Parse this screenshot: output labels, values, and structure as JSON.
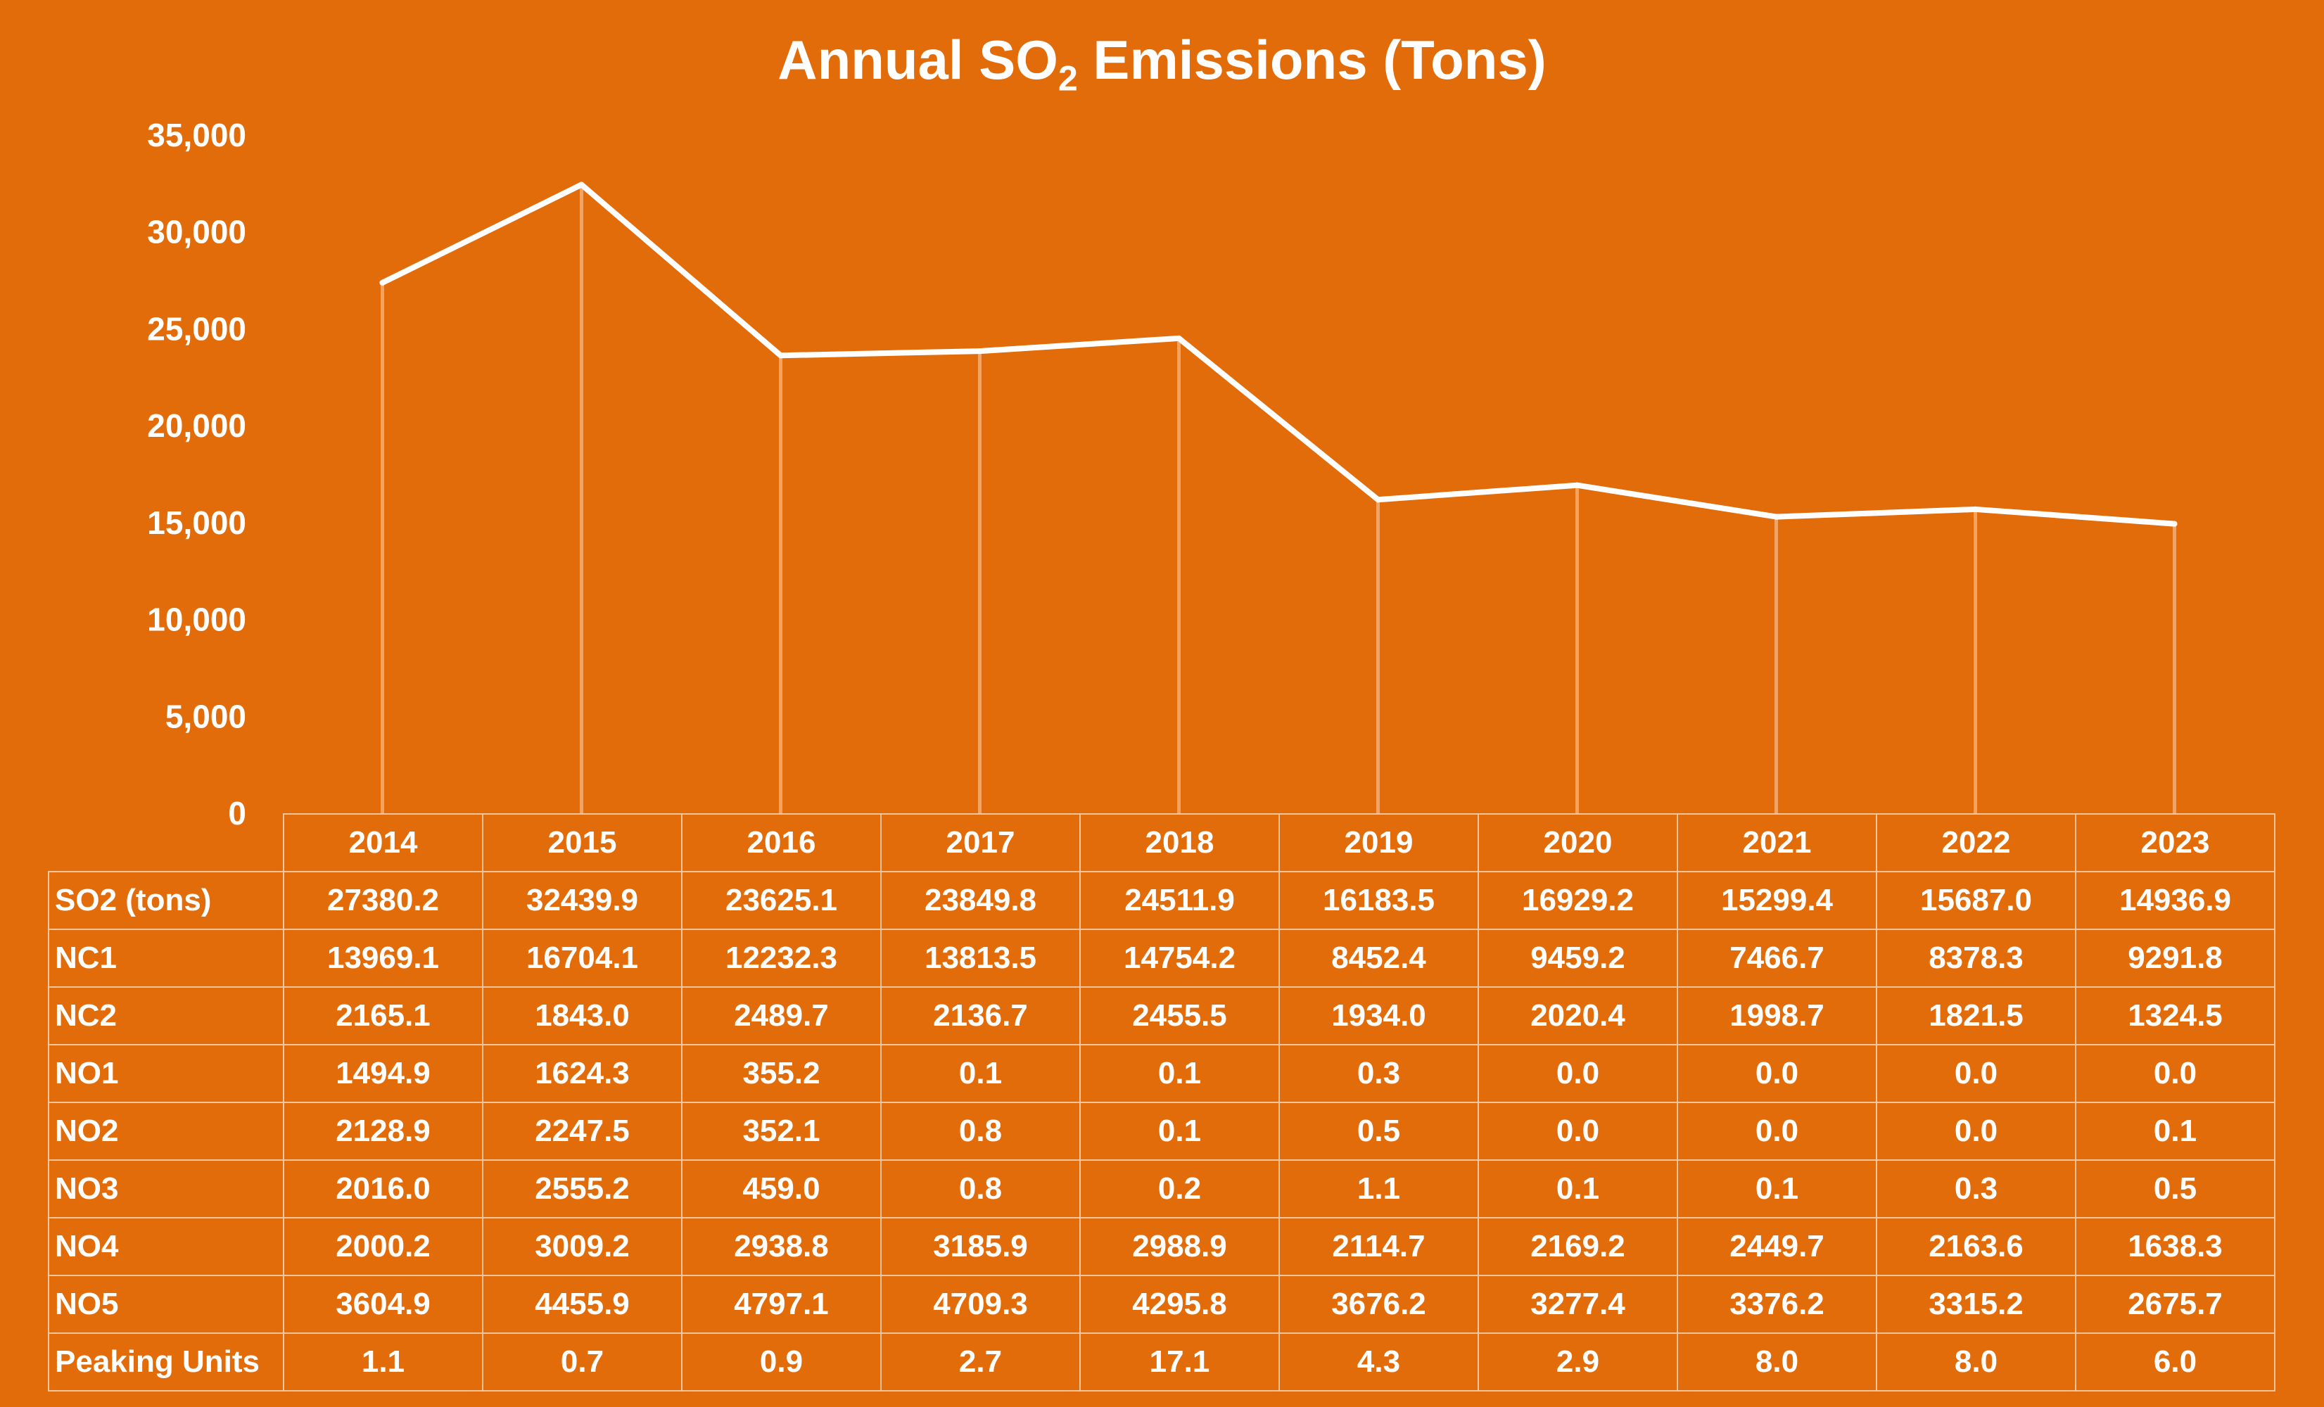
{
  "chart_data": {
    "type": "line",
    "title_main": "Annual SO",
    "title_sub": "2",
    "title_rest": " Emissions (Tons)",
    "xlabel": "",
    "ylabel": "",
    "ylim": [
      0,
      35000
    ],
    "y_ticks": [
      "0",
      "5,000",
      "10,000",
      "15,000",
      "20,000",
      "25,000",
      "30,000",
      "35,000"
    ],
    "y_tick_values": [
      0,
      5000,
      10000,
      15000,
      20000,
      25000,
      30000,
      35000
    ],
    "categories": [
      "2014",
      "2015",
      "2016",
      "2017",
      "2018",
      "2019",
      "2020",
      "2021",
      "2022",
      "2023"
    ],
    "series": [
      {
        "values": [
          27380.2,
          32439.9,
          23625.1,
          23849.8,
          24511.9,
          16183.5,
          16929.2,
          15299.4,
          15687.0,
          14936.9
        ]
      }
    ],
    "drop_lines": true,
    "legend": "none",
    "grid": false,
    "colors": {
      "background": "#e36c0a",
      "line": "#ffffff",
      "drop_line": "#f4a460"
    }
  },
  "table": {
    "rows": [
      {
        "label": "SO2 (tons)",
        "cells": [
          "27380.2",
          "32439.9",
          "23625.1",
          "23849.8",
          "24511.9",
          "16183.5",
          "16929.2",
          "15299.4",
          "15687.0",
          "14936.9"
        ]
      },
      {
        "label": "NC1",
        "cells": [
          "13969.1",
          "16704.1",
          "12232.3",
          "13813.5",
          "14754.2",
          "8452.4",
          "9459.2",
          "7466.7",
          "8378.3",
          "9291.8"
        ]
      },
      {
        "label": "NC2",
        "cells": [
          "2165.1",
          "1843.0",
          "2489.7",
          "2136.7",
          "2455.5",
          "1934.0",
          "2020.4",
          "1998.7",
          "1821.5",
          "1324.5"
        ]
      },
      {
        "label": "NO1",
        "cells": [
          "1494.9",
          "1624.3",
          "355.2",
          "0.1",
          "0.1",
          "0.3",
          "0.0",
          "0.0",
          "0.0",
          "0.0"
        ]
      },
      {
        "label": "NO2",
        "cells": [
          "2128.9",
          "2247.5",
          "352.1",
          "0.8",
          "0.1",
          "0.5",
          "0.0",
          "0.0",
          "0.0",
          "0.1"
        ]
      },
      {
        "label": "NO3",
        "cells": [
          "2016.0",
          "2555.2",
          "459.0",
          "0.8",
          "0.2",
          "1.1",
          "0.1",
          "0.1",
          "0.3",
          "0.5"
        ]
      },
      {
        "label": "NO4",
        "cells": [
          "2000.2",
          "3009.2",
          "2938.8",
          "3185.9",
          "2988.9",
          "2114.7",
          "2169.2",
          "2449.7",
          "2163.6",
          "1638.3"
        ]
      },
      {
        "label": "NO5",
        "cells": [
          "3604.9",
          "4455.9",
          "4797.1",
          "4709.3",
          "4295.8",
          "3676.2",
          "3277.4",
          "3376.2",
          "3315.2",
          "2675.7"
        ]
      },
      {
        "label": "Peaking Units",
        "cells": [
          "1.1",
          "0.7",
          "0.9",
          "2.7",
          "17.1",
          "4.3",
          "2.9",
          "8.0",
          "8.0",
          "6.0"
        ]
      }
    ]
  }
}
